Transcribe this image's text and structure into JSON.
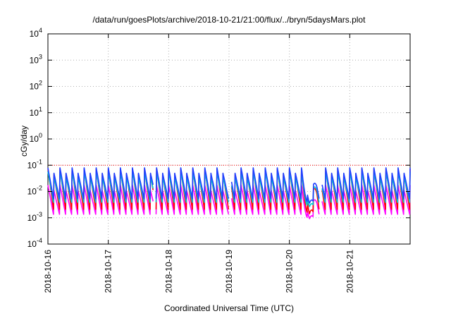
{
  "chart_data": {
    "type": "line",
    "title": "/data/run/goesPlots/archive/2018-10-21/21:00/flux/../bryn/5daysMars.plot",
    "xlabel": "Coordinated Universal Time (UTC)",
    "ylabel": "cGy/day",
    "xlim": [
      "2018-10-16",
      "2018-10-22"
    ],
    "ylim": [
      0.0001,
      10000
    ],
    "yscale": "log",
    "grid": true,
    "reference_line": {
      "y": 0.1,
      "color": "#ff0000",
      "style": "dotted"
    },
    "x_ticks": [
      "2018-10-16",
      "2018-10-17",
      "2018-10-18",
      "2018-10-19",
      "2018-10-20",
      "2018-10-21"
    ],
    "y_ticks": [
      {
        "value": 0.0001,
        "base": "10",
        "exp": "-4"
      },
      {
        "value": 0.001,
        "base": "10",
        "exp": "-3"
      },
      {
        "value": 0.01,
        "base": "10",
        "exp": "-2"
      },
      {
        "value": 0.1,
        "base": "10",
        "exp": "-1"
      },
      {
        "value": 1,
        "base": "10",
        "exp": "0"
      },
      {
        "value": 10,
        "base": "10",
        "exp": "1"
      },
      {
        "value": 100,
        "base": "10",
        "exp": "2"
      },
      {
        "value": 1000,
        "base": "10",
        "exp": "3"
      },
      {
        "value": 10000,
        "base": "10",
        "exp": "4"
      }
    ],
    "series": [
      {
        "color": "#ff00ff",
        "values_described": "lowest band, ~0.0013 to 0.02 cGy/day, minimum ~0.0003 on 2018-10-20"
      },
      {
        "color": "#ff0000",
        "values_described": "~0.002 to 0.09 cGy/day"
      },
      {
        "color": "#00cccc",
        "values_described": "~0.004 to 0.07 cGy/day"
      },
      {
        "color": "#1f3fff",
        "values_described": "highest band, ~0.005 to 0.1 cGy/day"
      }
    ],
    "envelope": {
      "start": "2018-10-16T00:00",
      "cycle_hours": 2.4,
      "peak_high": 0.08,
      "peak_low": 0.05,
      "trough": 0.0032,
      "gaps": [
        [
          "2018-10-17T18:00",
          "2018-10-17T19:00"
        ],
        [
          "2018-10-19T00:00",
          "2018-10-19T01:00"
        ],
        [
          "2018-10-20T12:00",
          "2018-10-20T13:00"
        ]
      ],
      "event": {
        "start": "2018-10-20T05:00",
        "end": "2018-10-20T11:00",
        "min": 0.0022
      }
    }
  }
}
